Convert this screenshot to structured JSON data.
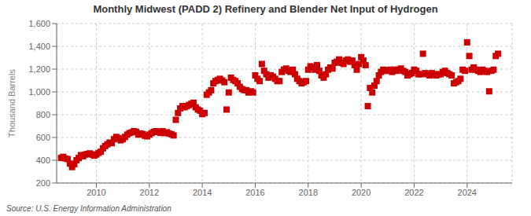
{
  "chart_data": {
    "type": "scatter",
    "title": "Monthly Midwest (PADD 2) Refinery and Blender Net Input of Hydrogen",
    "ylabel": "Thousand Barrels",
    "annotation": "Source: U.S. Energy Information Administration",
    "color": "#cc0000",
    "marker": "square",
    "grid": true,
    "xlim": [
      2008.5,
      2025.7
    ],
    "xticks": [
      2010,
      2012,
      2014,
      2016,
      2018,
      2020,
      2022,
      2024
    ],
    "ylim": [
      200,
      1600
    ],
    "yticks": [
      200,
      400,
      600,
      800,
      {
        "value": 1000,
        "label": "1,000"
      },
      {
        "value": 1200,
        "label": "1,200"
      },
      {
        "value": 1400,
        "label": "1,400"
      },
      {
        "value": 1600,
        "label": "1,600"
      }
    ],
    "x": [
      2008.667,
      2008.75,
      2008.833,
      2008.917,
      2009.0,
      2009.083,
      2009.167,
      2009.25,
      2009.333,
      2009.417,
      2009.5,
      2009.583,
      2009.667,
      2009.75,
      2009.833,
      2009.917,
      2010.0,
      2010.083,
      2010.167,
      2010.25,
      2010.333,
      2010.417,
      2010.5,
      2010.583,
      2010.667,
      2010.75,
      2010.833,
      2010.917,
      2011.0,
      2011.083,
      2011.167,
      2011.25,
      2011.333,
      2011.417,
      2011.5,
      2011.583,
      2011.667,
      2011.75,
      2011.833,
      2011.917,
      2012.0,
      2012.083,
      2012.167,
      2012.25,
      2012.333,
      2012.417,
      2012.5,
      2012.583,
      2012.667,
      2012.75,
      2012.833,
      2012.917,
      2013.0,
      2013.083,
      2013.167,
      2013.25,
      2013.333,
      2013.417,
      2013.5,
      2013.583,
      2013.667,
      2013.75,
      2013.833,
      2013.917,
      2014.0,
      2014.083,
      2014.167,
      2014.25,
      2014.333,
      2014.417,
      2014.5,
      2014.583,
      2014.667,
      2014.75,
      2014.833,
      2014.917,
      2015.0,
      2015.083,
      2015.167,
      2015.25,
      2015.333,
      2015.417,
      2015.5,
      2015.583,
      2015.667,
      2015.75,
      2015.833,
      2015.917,
      2016.0,
      2016.083,
      2016.167,
      2016.25,
      2016.333,
      2016.417,
      2016.5,
      2016.583,
      2016.667,
      2016.75,
      2016.833,
      2016.917,
      2017.0,
      2017.083,
      2017.167,
      2017.25,
      2017.333,
      2017.417,
      2017.5,
      2017.583,
      2017.667,
      2017.75,
      2017.833,
      2017.917,
      2018.0,
      2018.083,
      2018.167,
      2018.25,
      2018.333,
      2018.417,
      2018.5,
      2018.583,
      2018.667,
      2018.75,
      2018.833,
      2018.917,
      2019.0,
      2019.083,
      2019.167,
      2019.25,
      2019.333,
      2019.417,
      2019.5,
      2019.583,
      2019.667,
      2019.75,
      2019.833,
      2019.917,
      2020.0,
      2020.083,
      2020.167,
      2020.25,
      2020.333,
      2020.417,
      2020.5,
      2020.583,
      2020.667,
      2020.75,
      2020.833,
      2020.917,
      2021.0,
      2021.083,
      2021.167,
      2021.25,
      2021.333,
      2021.417,
      2021.5,
      2021.583,
      2021.667,
      2021.75,
      2021.833,
      2021.917,
      2022.0,
      2022.083,
      2022.167,
      2022.25,
      2022.333,
      2022.417,
      2022.5,
      2022.583,
      2022.667,
      2022.75,
      2022.833,
      2022.917,
      2023.0,
      2023.083,
      2023.167,
      2023.25,
      2023.333,
      2023.417,
      2023.5,
      2023.583,
      2023.667,
      2023.75,
      2023.833,
      2023.917,
      2024.0,
      2024.083,
      2024.167,
      2024.25,
      2024.333,
      2024.417,
      2024.5,
      2024.583,
      2024.667,
      2024.75,
      2024.833,
      2024.917,
      2025.0,
      2025.083,
      2025.167
    ],
    "values": [
      420,
      430,
      415,
      410,
      370,
      340,
      365,
      400,
      420,
      445,
      435,
      450,
      455,
      460,
      450,
      440,
      450,
      465,
      475,
      505,
      525,
      540,
      555,
      550,
      585,
      605,
      595,
      575,
      585,
      605,
      625,
      638,
      645,
      655,
      650,
      625,
      635,
      630,
      615,
      610,
      625,
      638,
      648,
      655,
      650,
      640,
      655,
      638,
      645,
      635,
      628,
      618,
      755,
      815,
      855,
      875,
      865,
      875,
      885,
      895,
      905,
      865,
      845,
      835,
      805,
      815,
      975,
      995,
      1015,
      1075,
      1095,
      1105,
      1115,
      1100,
      1085,
      845,
      995,
      1125,
      1105,
      1095,
      1075,
      1045,
      1025,
      1015,
      1015,
      995,
      1005,
      995,
      1145,
      1115,
      1095,
      1245,
      1185,
      1155,
      1125,
      1145,
      1135,
      1115,
      1095,
      1095,
      1175,
      1195,
      1205,
      1185,
      1175,
      1195,
      1155,
      1115,
      1095,
      1075,
      1085,
      1095,
      1195,
      1225,
      1215,
      1195,
      1235,
      1185,
      1145,
      1125,
      1155,
      1195,
      1215,
      1205,
      1255,
      1265,
      1285,
      1255,
      1245,
      1275,
      1285,
      1265,
      1275,
      1235,
      1195,
      1245,
      1305,
      1275,
      1235,
      875,
      1035,
      995,
      1055,
      1095,
      1145,
      1175,
      1195,
      1185,
      1185,
      1195,
      1175,
      1195,
      1185,
      1195,
      1205,
      1185,
      1175,
      1145,
      1155,
      1165,
      1195,
      1185,
      1155,
      1155,
      1335,
      1165,
      1155,
      1145,
      1165,
      1155,
      1145,
      1155,
      1155,
      1175,
      1185,
      1165,
      1155,
      1145,
      1075,
      1085,
      1095,
      1115,
      1195,
      1185,
      1435,
      1315,
      1195,
      1215,
      1195,
      1185,
      1175,
      1195,
      1185,
      1175,
      1005,
      1185,
      1195,
      1315,
      1335
    ]
  }
}
